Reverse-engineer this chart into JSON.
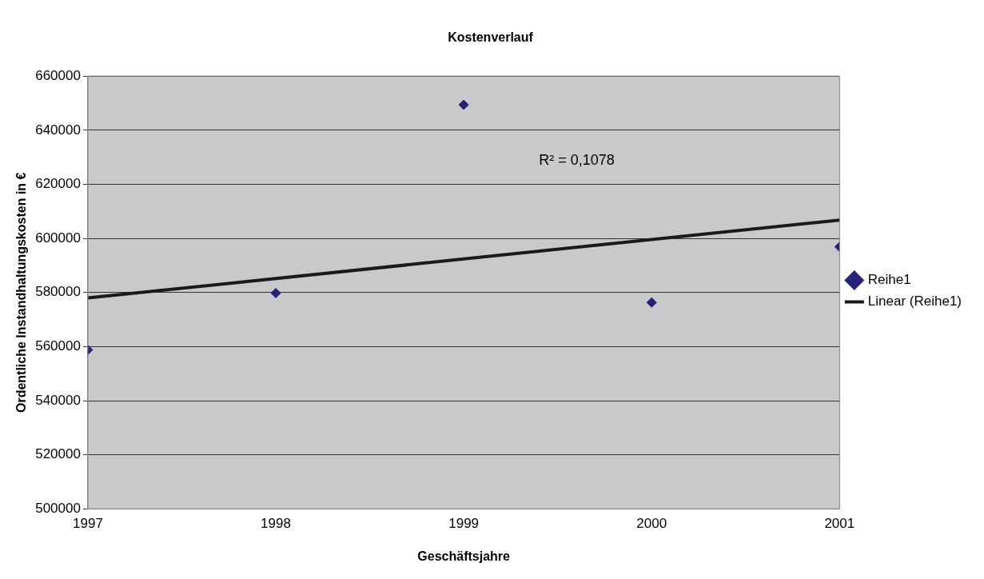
{
  "chart_data": {
    "type": "scatter",
    "title": "Kostenverlauf",
    "xlabel": "Geschäftsjahre",
    "ylabel": "Ordentliche Instandhaltungskosten in €",
    "x": [
      1997,
      1998,
      1999,
      2000,
      2001
    ],
    "series": [
      {
        "name": "Reihe1",
        "color": "#23237a",
        "values": [
          558800,
          579800,
          649400,
          576300,
          596900
        ],
        "marker": "diamond"
      },
      {
        "name": "Linear (Reihe1)",
        "type": "line",
        "color": "#1a1a1a",
        "x": [
          1997,
          2001
        ],
        "values": [
          578000,
          606800
        ],
        "marker": "none",
        "line_style": "solid"
      }
    ],
    "xlim": [
      1997,
      2001
    ],
    "xticks": [
      1997,
      1998,
      1999,
      2000,
      2001
    ],
    "ylim": [
      500000,
      660000
    ],
    "yticks": [
      500000,
      520000,
      540000,
      560000,
      580000,
      600000,
      620000,
      640000,
      660000
    ],
    "grid": "y",
    "legend": "right",
    "annotations": [
      "R² = 0,1078"
    ]
  }
}
